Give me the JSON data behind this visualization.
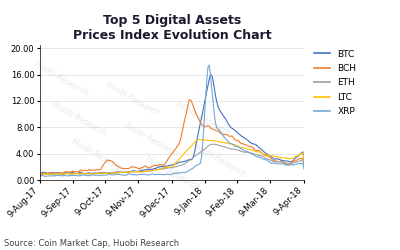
{
  "title": "Top 5 Digital Assets\nPrices Index Evolution Chart",
  "source_text": "Source: Coin Market Cap, Huobi Research",
  "watermark": "Huobi Research",
  "x_labels": [
    "9-Aug-17",
    "9-Sep-17",
    "9-Oct-17",
    "9-Nov-17",
    "9-Dec-17",
    "9-Jan-18",
    "9-Feb-18",
    "9-Mar-18",
    "9-Apr-18"
  ],
  "y_ticks": [
    0.0,
    4.0,
    8.0,
    12.0,
    16.0,
    20.0
  ],
  "ylim": [
    0,
    20.5
  ],
  "series": {
    "BTC": {
      "color": "#4472c4",
      "lw": 0.8
    },
    "BCH": {
      "color": "#ed7d31",
      "lw": 0.8
    },
    "ETH": {
      "color": "#a0a0a0",
      "lw": 0.8
    },
    "LTC": {
      "color": "#ffc000",
      "lw": 0.8
    },
    "XRP": {
      "color": "#70a8d8",
      "lw": 0.8
    }
  },
  "legend_order": [
    "BTC",
    "BCH",
    "ETH",
    "LTC",
    "XRP"
  ],
  "background_color": "#ffffff",
  "plot_bg_color": "#ffffff",
  "title_fontsize": 9,
  "source_fontsize": 6,
  "tick_fontsize": 6
}
